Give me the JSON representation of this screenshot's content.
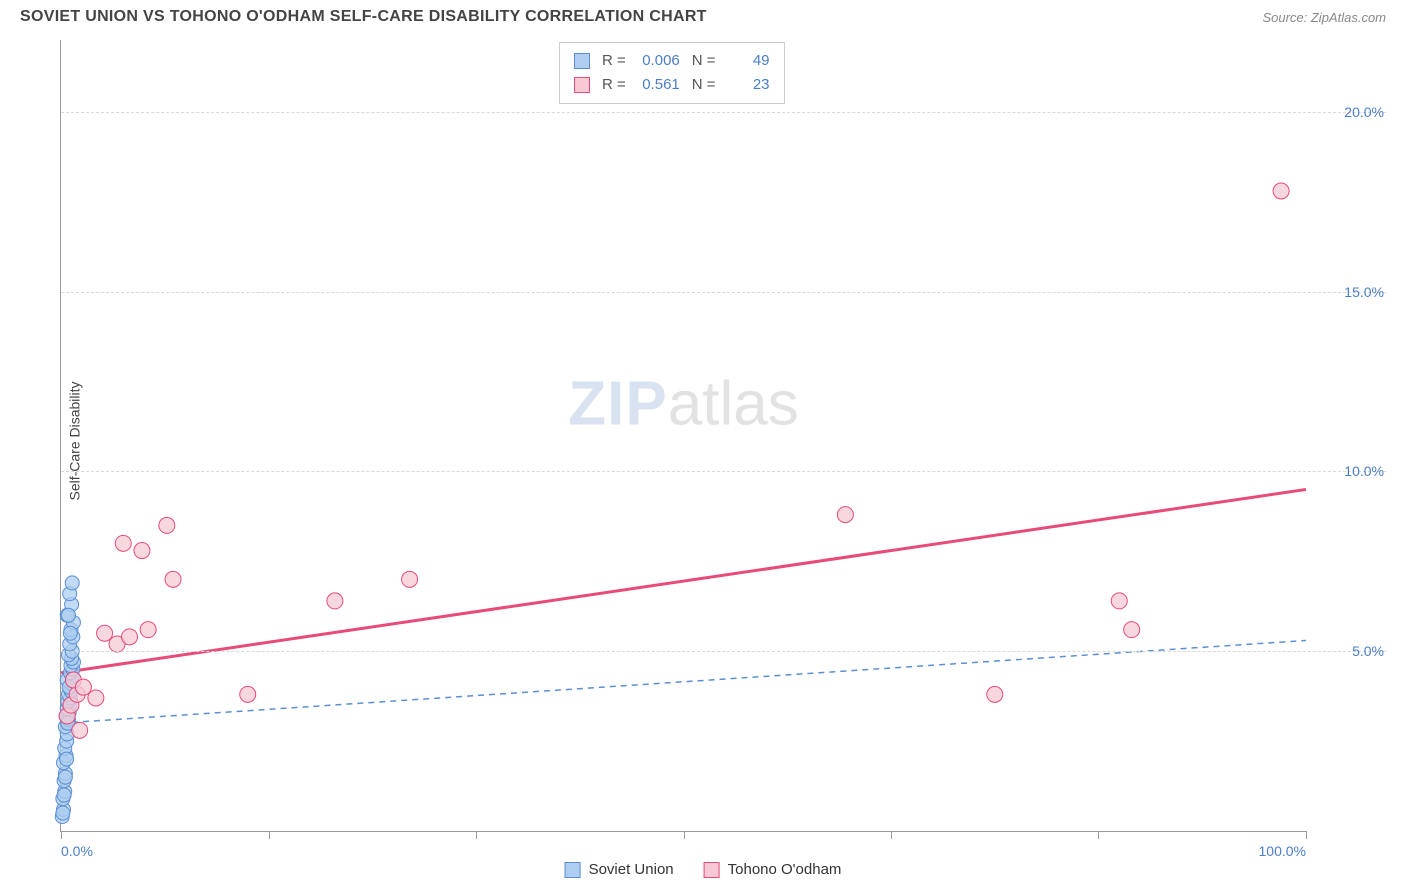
{
  "title": "SOVIET UNION VS TOHONO O'ODHAM SELF-CARE DISABILITY CORRELATION CHART",
  "source": "Source: ZipAtlas.com",
  "y_axis_label": "Self-Care Disability",
  "watermark": {
    "part1": "ZIP",
    "part2": "atlas"
  },
  "chart": {
    "type": "scatter",
    "xlim": [
      0,
      100
    ],
    "ylim": [
      0,
      22
    ],
    "x_ticks": [
      0,
      16.67,
      33.33,
      50,
      66.67,
      83.33,
      100
    ],
    "x_tick_labels": {
      "0": "0.0%",
      "100": "100.0%"
    },
    "y_gridlines": [
      5,
      10,
      15,
      20
    ],
    "y_tick_labels": {
      "5": "5.0%",
      "10": "10.0%",
      "15": "15.0%",
      "20": "20.0%"
    },
    "grid_color": "#d8d8d8",
    "axis_color": "#999999",
    "background_color": "#ffffff",
    "series": [
      {
        "name": "Soviet Union",
        "marker_fill": "#aecdf0",
        "marker_stroke": "#5b8fd4",
        "marker_radius": 7,
        "trend": {
          "style": "dashed",
          "color": "#5b8fd4",
          "width": 1.5,
          "y_at_x0": 3.0,
          "y_at_x100": 5.3
        },
        "stats": {
          "R": "0.006",
          "N": "49"
        },
        "points": [
          [
            0.1,
            0.4
          ],
          [
            0.2,
            0.6
          ],
          [
            0.15,
            0.9
          ],
          [
            0.3,
            1.1
          ],
          [
            0.25,
            1.4
          ],
          [
            0.35,
            1.6
          ],
          [
            0.2,
            1.9
          ],
          [
            0.4,
            2.1
          ],
          [
            0.3,
            2.3
          ],
          [
            0.45,
            2.5
          ],
          [
            0.5,
            2.7
          ],
          [
            0.35,
            2.9
          ],
          [
            0.55,
            3.0
          ],
          [
            0.6,
            3.1
          ],
          [
            0.4,
            3.2
          ],
          [
            0.65,
            3.3
          ],
          [
            0.5,
            3.4
          ],
          [
            0.7,
            3.5
          ],
          [
            0.55,
            3.6
          ],
          [
            0.75,
            3.7
          ],
          [
            0.6,
            3.8
          ],
          [
            0.8,
            3.9
          ],
          [
            0.7,
            4.0
          ],
          [
            0.85,
            4.1
          ],
          [
            0.5,
            4.2
          ],
          [
            0.9,
            4.3
          ],
          [
            0.75,
            4.4
          ],
          [
            0.95,
            4.5
          ],
          [
            0.8,
            4.6
          ],
          [
            1.0,
            4.7
          ],
          [
            0.85,
            4.8
          ],
          [
            0.6,
            4.9
          ],
          [
            0.9,
            5.0
          ],
          [
            0.7,
            5.2
          ],
          [
            0.95,
            5.4
          ],
          [
            0.8,
            5.6
          ],
          [
            1.0,
            5.8
          ],
          [
            0.5,
            6.0
          ],
          [
            0.85,
            6.3
          ],
          [
            0.7,
            6.6
          ],
          [
            0.9,
            6.9
          ],
          [
            0.6,
            6.0
          ],
          [
            0.75,
            5.5
          ],
          [
            0.65,
            4.0
          ],
          [
            0.55,
            3.0
          ],
          [
            0.45,
            2.0
          ],
          [
            0.35,
            1.5
          ],
          [
            0.25,
            1.0
          ],
          [
            0.15,
            0.5
          ]
        ]
      },
      {
        "name": "Tohono O'odham",
        "marker_fill": "#f7c9d4",
        "marker_stroke": "#e84a7a",
        "marker_radius": 8,
        "trend": {
          "style": "solid",
          "color": "#e84a7a",
          "width": 3,
          "y_at_x0": 4.4,
          "y_at_x100": 9.5
        },
        "stats": {
          "R": "0.561",
          "N": "23"
        },
        "points": [
          [
            0.5,
            3.2
          ],
          [
            0.8,
            3.5
          ],
          [
            1.3,
            3.8
          ],
          [
            1.0,
            4.2
          ],
          [
            1.8,
            4.0
          ],
          [
            2.8,
            3.7
          ],
          [
            3.5,
            5.5
          ],
          [
            4.5,
            5.2
          ],
          [
            5.5,
            5.4
          ],
          [
            7.0,
            5.6
          ],
          [
            5.0,
            8.0
          ],
          [
            6.5,
            7.8
          ],
          [
            9.0,
            7.0
          ],
          [
            8.5,
            8.5
          ],
          [
            15.0,
            3.8
          ],
          [
            22.0,
            6.4
          ],
          [
            28.0,
            7.0
          ],
          [
            63.0,
            8.8
          ],
          [
            75.0,
            3.8
          ],
          [
            86.0,
            5.6
          ],
          [
            85.0,
            6.4
          ],
          [
            98.0,
            17.8
          ],
          [
            1.5,
            2.8
          ]
        ]
      }
    ]
  },
  "stats_legend_labels": {
    "R": "R =",
    "N": "N ="
  }
}
